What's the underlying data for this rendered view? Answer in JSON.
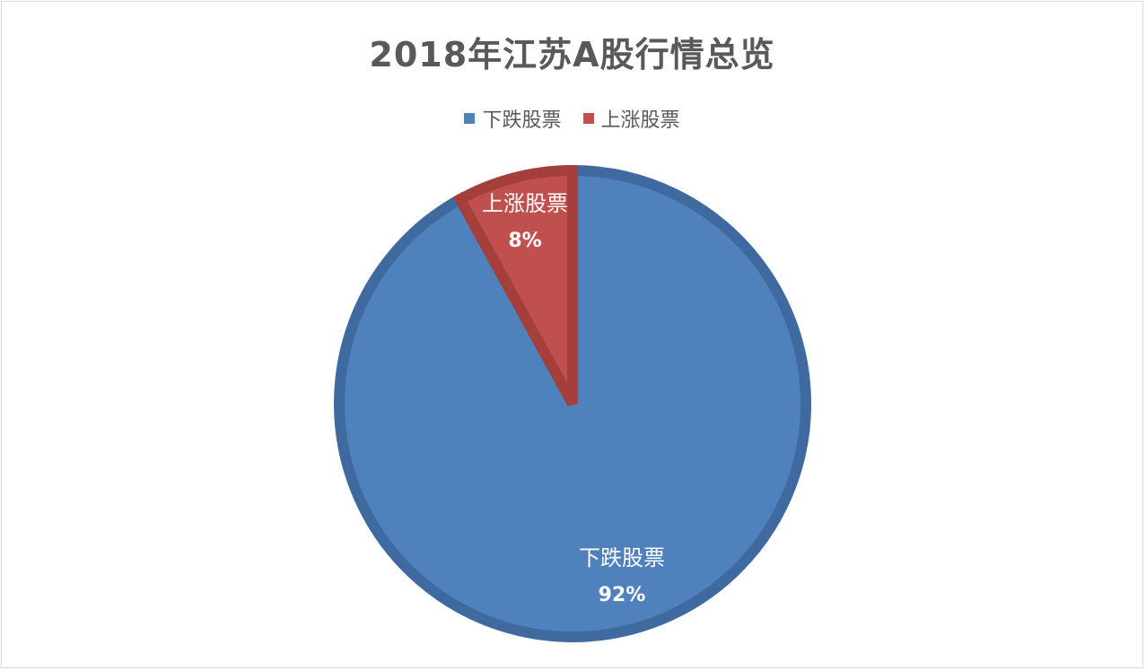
{
  "chart_data": {
    "type": "pie",
    "title": "2018年江苏A股行情总览",
    "categories": [
      "下跌股票",
      "上涨股票"
    ],
    "values": [
      92,
      8
    ],
    "percent_labels": [
      "92%",
      "8%"
    ],
    "colors": [
      "#4f81bd",
      "#c0504d"
    ],
    "border_colors": [
      "#3e6aa0",
      "#a53f3c"
    ],
    "legend_position": "top"
  }
}
